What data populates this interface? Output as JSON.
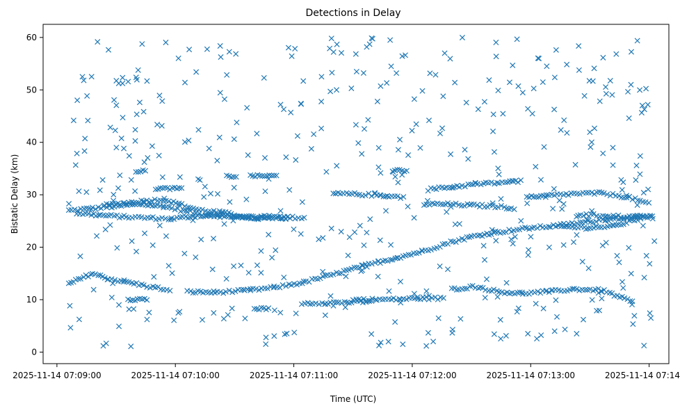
{
  "chart_data": {
    "type": "scatter",
    "title": "Detections in Delay",
    "xlabel": "Time (UTC)",
    "ylabel": "Bistatic Delay (km)",
    "x_unit": "seconds",
    "x_ticks": [
      {
        "value": 0,
        "label": "2025-11-14 07:09:00"
      },
      {
        "value": 60,
        "label": "2025-11-14 07:10:00"
      },
      {
        "value": 120,
        "label": "2025-11-14 07:11:00"
      },
      {
        "value": 180,
        "label": "2025-11-14 07:12:00"
      },
      {
        "value": 240,
        "label": "2025-11-14 07:13:00"
      },
      {
        "value": 300,
        "label": "2025-11-14 07:14:00"
      }
    ],
    "y_ticks": [
      0,
      10,
      20,
      30,
      40,
      50,
      60
    ],
    "xlim": [
      -7,
      310
    ],
    "ylim": [
      -2.2,
      62.5
    ],
    "marker": "x",
    "color": "#1f77b4",
    "grid": false,
    "legend": "none",
    "tracks": [
      {
        "x": [
          6,
          18,
          30,
          42,
          54,
          66,
          78,
          90,
          102,
          114,
          126
        ],
        "y": [
          27,
          27.4,
          27.8,
          28.2,
          27.8,
          26.8,
          26,
          25.8,
          25.5,
          25.7,
          25.6
        ]
      },
      {
        "x": [
          10,
          22,
          34,
          46,
          58,
          70,
          82,
          94,
          106,
          118
        ],
        "y": [
          26.5,
          26.1,
          25.8,
          25.6,
          25.4,
          25.9,
          26.2,
          25.6,
          25.8,
          25.6
        ]
      },
      {
        "x": [
          24,
          34,
          44,
          54,
          62,
          72,
          84,
          96,
          108
        ],
        "y": [
          28,
          28.4,
          28.8,
          29.1,
          28.2,
          27.1,
          26.6,
          25.8,
          25.4
        ]
      },
      {
        "x": [
          6,
          12,
          18,
          26,
          34,
          44,
          54,
          58
        ],
        "y": [
          13,
          14,
          15,
          14,
          13.5,
          12.7,
          12,
          11.5
        ]
      },
      {
        "x": [
          66,
          80,
          95,
          110,
          125,
          140,
          155,
          170,
          185,
          198,
          210,
          222,
          238,
          250,
          262,
          278,
          294,
          302
        ],
        "y": [
          11.5,
          11.4,
          11.7,
          12.3,
          13.3,
          14.8,
          16.4,
          17.8,
          19.2,
          20.8,
          22,
          22.8,
          23.6,
          24,
          24.5,
          25.3,
          25.8,
          25.9
        ]
      },
      {
        "x": [
          140,
          152,
          164,
          176
        ],
        "y": [
          30.2,
          30.1,
          29.9,
          29.5
        ]
      },
      {
        "x": [
          150,
          162,
          174,
          186,
          196
        ],
        "y": [
          10,
          10,
          10.1,
          10.3,
          10.2
        ]
      },
      {
        "x": [
          124,
          136,
          148,
          160
        ],
        "y": [
          9.3,
          9.4,
          9.5,
          9.6
        ]
      },
      {
        "x": [
          186,
          198,
          210,
          222,
          232
        ],
        "y": [
          28.2,
          28.2,
          28,
          27.8,
          27.4
        ]
      },
      {
        "x": [
          188,
          200,
          212,
          224,
          236
        ],
        "y": [
          31,
          31.5,
          32,
          32.3,
          32.6
        ]
      },
      {
        "x": [
          200,
          212,
          224,
          236,
          248,
          262,
          276,
          292
        ],
        "y": [
          12,
          12.5,
          11.5,
          11.2,
          11.5,
          12,
          11.8,
          9.5
        ]
      },
      {
        "x": [
          248,
          262,
          276,
          290,
          300
        ],
        "y": [
          29.8,
          30.2,
          30.3,
          29.5,
          28.2
        ]
      },
      {
        "x": [
          254,
          268,
          282,
          296
        ],
        "y": [
          24,
          23.7,
          24,
          25.5
        ]
      },
      {
        "x": [
          264,
          278,
          290,
          302
        ],
        "y": [
          26.2,
          26,
          25.8,
          25.6
        ]
      }
    ],
    "clusters": [
      {
        "x": [
          40,
          46
        ],
        "y": 34.5
      },
      {
        "x": [
          50,
          64
        ],
        "y": 31.2
      },
      {
        "x": [
          86,
          92
        ],
        "y": 33.5
      },
      {
        "x": [
          98,
          112
        ],
        "y": 33.6
      },
      {
        "x": [
          36,
          46
        ],
        "y": 10
      },
      {
        "x": [
          100,
          108
        ],
        "y": 8.3
      },
      {
        "x": [
          170,
          178
        ],
        "y": 34.6
      },
      {
        "x": [
          238,
          248
        ],
        "y": 29.7
      }
    ],
    "scatter_count": 460,
    "series": [
      {
        "x": [],
        "y": []
      }
    ]
  }
}
